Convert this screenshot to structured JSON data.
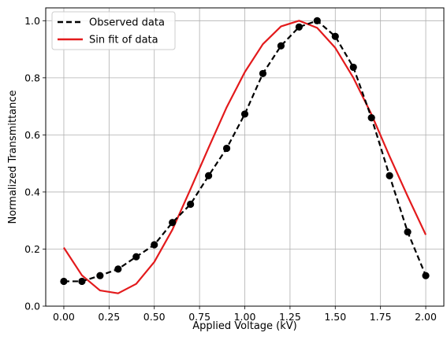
{
  "chart_data": {
    "type": "line",
    "xlabel": "Applied Voltage (kV)",
    "ylabel": "Normalized Transmittance",
    "xlim": [
      -0.1,
      2.1
    ],
    "ylim": [
      0.0,
      1.045
    ],
    "x_ticks": [
      "0.00",
      "0.25",
      "0.50",
      "0.75",
      "1.00",
      "1.25",
      "1.50",
      "1.75",
      "2.00"
    ],
    "y_ticks": [
      "0.0",
      "0.2",
      "0.4",
      "0.6",
      "0.8",
      "1.0"
    ],
    "grid": true,
    "legend_position": "top-left",
    "x": [
      0.0,
      0.1,
      0.2,
      0.3,
      0.4,
      0.5,
      0.6,
      0.7,
      0.8,
      0.9,
      1.0,
      1.1,
      1.2,
      1.3,
      1.4,
      1.5,
      1.6,
      1.7,
      1.8,
      1.9,
      2.0
    ],
    "series": [
      {
        "name": "Observed data",
        "style": "dashed-with-markers",
        "color": "#000000",
        "values": [
          0.087,
          0.087,
          0.107,
          0.13,
          0.173,
          0.215,
          0.293,
          0.357,
          0.457,
          0.553,
          0.673,
          0.815,
          0.912,
          0.978,
          1.0,
          0.945,
          0.837,
          0.66,
          0.457,
          0.26,
          0.107
        ]
      },
      {
        "name": "Sin fit of data",
        "style": "solid",
        "color": "#e31a1c",
        "values": [
          0.205,
          0.108,
          0.055,
          0.045,
          0.078,
          0.155,
          0.268,
          0.41,
          0.555,
          0.697,
          0.82,
          0.918,
          0.98,
          1.0,
          0.975,
          0.905,
          0.8,
          0.672,
          0.525,
          0.385,
          0.25
        ]
      }
    ]
  }
}
